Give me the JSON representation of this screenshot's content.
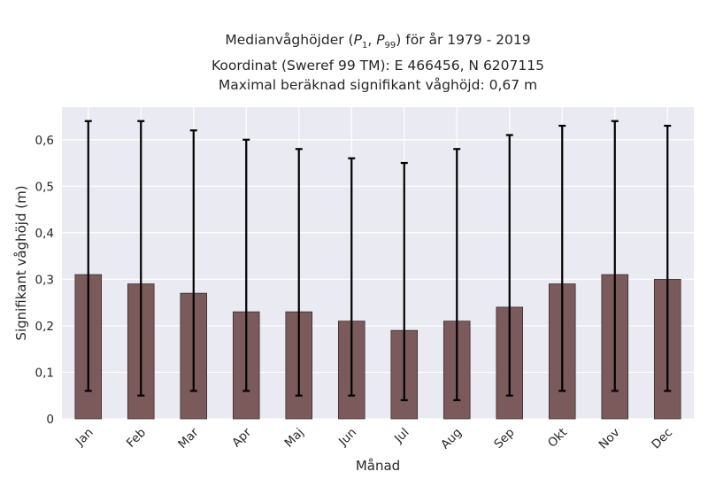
{
  "title_lines": [
    "Medianvåghöjder (P1, P99) för år 1979 - 2019",
    "Koordinat (Sweref 99 TM): E 466456, N 6207115",
    "Maximal beräknad signifikant våghöjd: 0,67 m"
  ],
  "chart_data": {
    "type": "bar",
    "title": "Medianvåghöjder (P1, P99) för år 1979 - 2019",
    "xlabel": "Månad",
    "ylabel": "Signifikant våghöjd (m)",
    "categories": [
      "Jan",
      "Feb",
      "Mar",
      "Apr",
      "Maj",
      "Jun",
      "Jul",
      "Aug",
      "Sep",
      "Okt",
      "Nov",
      "Dec"
    ],
    "values": [
      0.31,
      0.29,
      0.27,
      0.23,
      0.23,
      0.21,
      0.19,
      0.21,
      0.24,
      0.29,
      0.31,
      0.3
    ],
    "error_low": [
      0.06,
      0.05,
      0.06,
      0.06,
      0.05,
      0.05,
      0.04,
      0.04,
      0.05,
      0.06,
      0.06,
      0.06
    ],
    "error_high": [
      0.64,
      0.64,
      0.62,
      0.6,
      0.58,
      0.56,
      0.55,
      0.58,
      0.61,
      0.63,
      0.64,
      0.63
    ],
    "ylim": [
      0,
      0.67
    ],
    "yticks": [
      0,
      0.1,
      0.2,
      0.3,
      0.4,
      0.5,
      0.6
    ],
    "ytick_labels": [
      "0",
      "0,1",
      "0,2",
      "0,3",
      "0,4",
      "0,5",
      "0,6"
    ],
    "grid": true,
    "bar_color": "#7a5a5a",
    "background_color": "#eaeaf2",
    "errorbar_color": "#000000"
  }
}
